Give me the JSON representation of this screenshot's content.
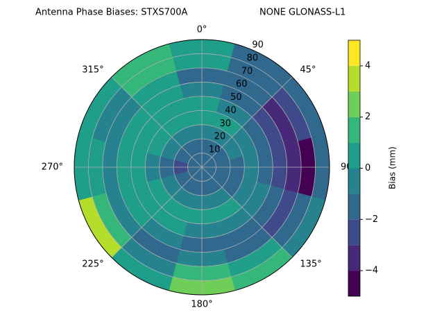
{
  "chart_data": {
    "type": "polar_contour",
    "title": "Antenna Phase Biases: STXS700A",
    "subtitle": "NONE GLONASS-L1",
    "theta_ticks": [
      {
        "value": 0,
        "label": "0°"
      },
      {
        "value": 45,
        "label": "45°"
      },
      {
        "value": 90,
        "label": "90"
      },
      {
        "value": 135,
        "label": "135°"
      },
      {
        "value": 180,
        "label": "180°"
      },
      {
        "value": 225,
        "label": "225°"
      },
      {
        "value": 270,
        "label": "270°"
      },
      {
        "value": 315,
        "label": "315°"
      }
    ],
    "rlim": [
      0,
      90
    ],
    "rticks": [
      10,
      20,
      30,
      40,
      50,
      60,
      70,
      80,
      90
    ],
    "grid": true,
    "azimuths": [
      0,
      30,
      60,
      90,
      120,
      150,
      180,
      210,
      240,
      270,
      300,
      330
    ],
    "radii": [
      5,
      15,
      25,
      35,
      45,
      55,
      65,
      75,
      85
    ],
    "values": [
      [
        -1.5,
        -1.5,
        -0.5,
        0.5,
        0.5,
        -0.5,
        -1.5,
        0.5,
        0.5
      ],
      [
        -1.5,
        -1.5,
        -0.5,
        0.5,
        -0.5,
        -1.5,
        -1.5,
        -1.5,
        -1.5
      ],
      [
        -1.5,
        -1.5,
        -0.5,
        -0.5,
        -1.5,
        -2.5,
        -3.5,
        -2.5,
        -1.5
      ],
      [
        -1.5,
        -1.5,
        -1.5,
        -0.5,
        -1.5,
        -2.5,
        -3.5,
        -4.5,
        -1.5
      ],
      [
        -1.5,
        -1.5,
        -1.5,
        -0.5,
        -0.5,
        -1.5,
        -2.5,
        -1.5,
        -0.5
      ],
      [
        -1.5,
        -1.5,
        -0.5,
        0.5,
        -0.5,
        -1.5,
        -1.5,
        0.5,
        1.5
      ],
      [
        -1.5,
        -1.5,
        -0.5,
        0.5,
        -0.5,
        -1.5,
        -0.5,
        1.5,
        2.5
      ],
      [
        -1.5,
        -1.5,
        -0.5,
        0.5,
        0.5,
        -0.5,
        -1.5,
        -0.5,
        0.5
      ],
      [
        -1.5,
        -1.5,
        -0.5,
        0.5,
        0.5,
        0.5,
        -0.5,
        1.5,
        3.5
      ],
      [
        -1.5,
        -2.5,
        -1.5,
        -0.5,
        0.5,
        0.5,
        -0.5,
        0.5,
        0.5
      ],
      [
        -1.5,
        -1.5,
        -0.5,
        0.5,
        0.5,
        0.5,
        -0.5,
        -0.5,
        0.5
      ],
      [
        -1.5,
        -1.5,
        -0.5,
        0.5,
        0.5,
        0.5,
        0.5,
        1.5,
        1.5
      ]
    ],
    "levels": [
      -5,
      -4,
      -3,
      -2,
      -1,
      0,
      1,
      2,
      3,
      4,
      5
    ],
    "colors": [
      "#440154",
      "#482878",
      "#3e4a89",
      "#31688e",
      "#26828e",
      "#1f9e89",
      "#35b779",
      "#6ece58",
      "#b5de2b",
      "#fde725"
    ],
    "colorbar_label": "Bias (mm)",
    "cbar_ticks": [
      {
        "value": -4,
        "label": "−4"
      },
      {
        "value": -2,
        "label": "−2"
      },
      0,
      2,
      4
    ]
  }
}
